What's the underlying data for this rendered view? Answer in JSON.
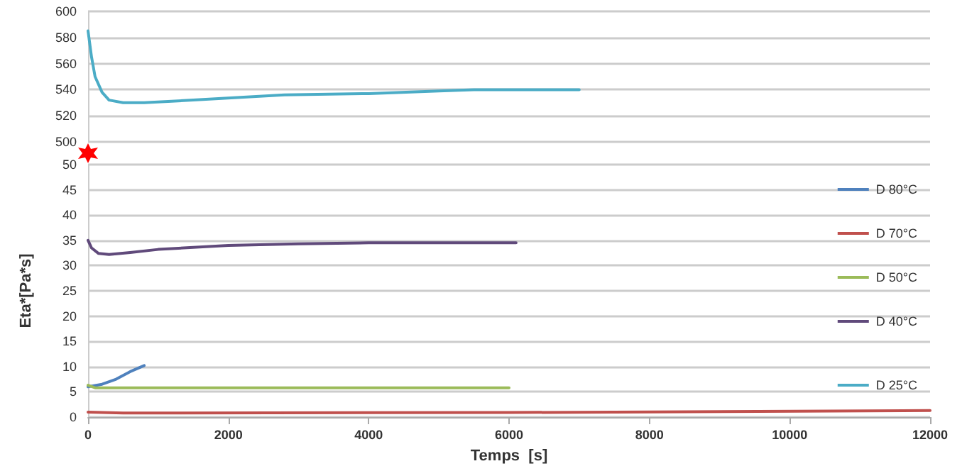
{
  "chart_data": [
    {
      "type": "line",
      "xlim": [
        0,
        12000
      ],
      "xticks": [
        0,
        2000,
        4000,
        6000,
        8000,
        10000,
        12000
      ],
      "ylim": [
        500,
        600
      ],
      "yticks": [
        500,
        520,
        540,
        560,
        580,
        600
      ],
      "grid": "y",
      "legend": "right",
      "tick_labels": "y",
      "marker": "none",
      "series": [
        {
          "name": "D 25°C",
          "color": "#4bacc6",
          "x": [
            0,
            50,
            100,
            200,
            300,
            500,
            800,
            1500,
            2800,
            4000,
            5000,
            5500,
            7000
          ],
          "values": [
            585,
            565,
            550,
            538,
            532,
            530,
            530,
            532,
            536,
            537,
            539,
            540,
            540
          ]
        }
      ]
    },
    {
      "type": "line",
      "xlabel": "Temps  [s]",
      "ylabel": "Eta*[Pa*s]",
      "xlim": [
        0,
        12000
      ],
      "xticks": [
        0,
        2000,
        4000,
        6000,
        8000,
        10000,
        12000
      ],
      "ylim": [
        0,
        50
      ],
      "yticks": [
        0,
        5,
        10,
        15,
        20,
        25,
        30,
        35,
        40,
        45,
        50
      ],
      "grid": "y",
      "legend": "right",
      "marker": "none",
      "series": [
        {
          "name": "D 80°C",
          "color": "#4f81bd",
          "x": [
            0,
            200,
            400,
            600,
            800
          ],
          "values": [
            6,
            6.5,
            7.5,
            9,
            10.2
          ]
        },
        {
          "name": "D 70°C",
          "color": "#c0504d",
          "x": [
            0,
            500,
            6000,
            12000
          ],
          "values": [
            1,
            0.8,
            0.9,
            1.3
          ]
        },
        {
          "name": "D 50°C",
          "color": "#9bbb59",
          "x": [
            0,
            100,
            6000
          ],
          "values": [
            6.3,
            5.8,
            5.8
          ]
        },
        {
          "name": "D 40°C",
          "color": "#604a7b",
          "x": [
            0,
            50,
            150,
            300,
            600,
            1000,
            2000,
            3000,
            4000,
            6100
          ],
          "values": [
            35,
            33.5,
            32.4,
            32.2,
            32.6,
            33.2,
            34,
            34.3,
            34.5,
            34.5
          ]
        }
      ]
    }
  ]
}
